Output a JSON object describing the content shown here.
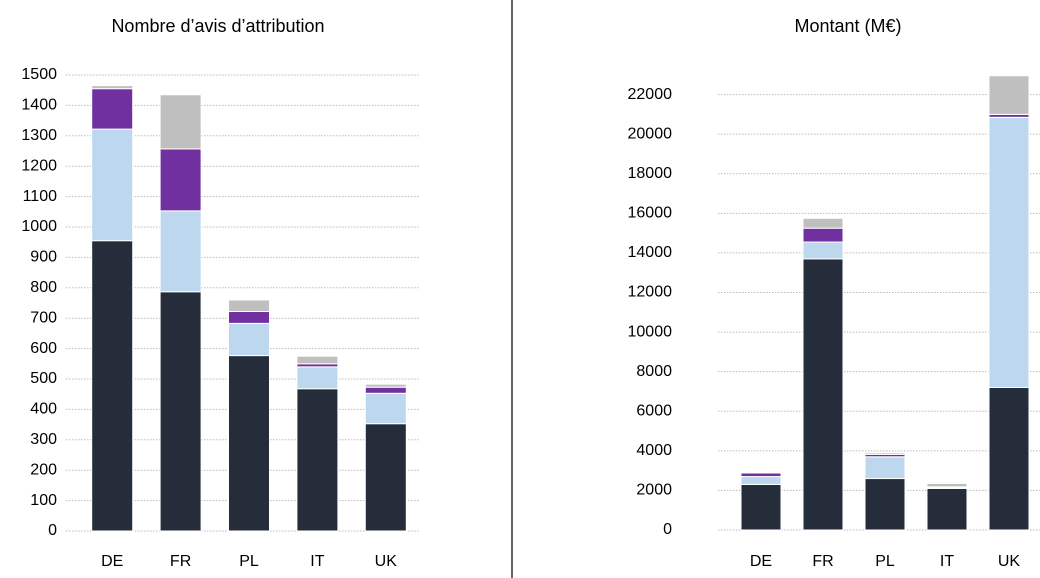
{
  "chart_data": [
    {
      "type": "bar",
      "stacked": true,
      "title": "Nombre d’avis d’attribution",
      "categories": [
        "DE",
        "FR",
        "PL",
        "IT",
        "UK"
      ],
      "series": [
        {
          "color": "#252c3a",
          "values": [
            955,
            787,
            577,
            468,
            353
          ]
        },
        {
          "color": "#bdd7ee",
          "values": [
            367,
            266,
            106,
            72,
            100
          ]
        },
        {
          "color": "#7030a0",
          "values": [
            133,
            204,
            39,
            10,
            20
          ]
        },
        {
          "color": "#bfbfbf",
          "values": [
            10,
            178,
            38,
            25,
            10
          ]
        }
      ],
      "ylim": [
        0,
        1500
      ],
      "yticks": [
        0,
        100,
        200,
        300,
        400,
        500,
        600,
        700,
        800,
        900,
        1000,
        1100,
        1200,
        1300,
        1400,
        1500
      ],
      "grid": true
    },
    {
      "type": "bar",
      "stacked": true,
      "title": "Montant (M€)",
      "categories": [
        "DE",
        "FR",
        "PL",
        "IT",
        "UK"
      ],
      "series": [
        {
          "color": "#252c3a",
          "values": [
            2300,
            13700,
            2600,
            2100,
            7200
          ]
        },
        {
          "color": "#bdd7ee",
          "values": [
            400,
            850,
            1100,
            50,
            13650
          ]
        },
        {
          "color": "#7030a0",
          "values": [
            180,
            700,
            120,
            30,
            150
          ]
        },
        {
          "color": "#bfbfbf",
          "values": [
            30,
            500,
            80,
            170,
            1950
          ]
        }
      ],
      "ylim": [
        0,
        24000
      ],
      "yticks": [
        0,
        2000,
        4000,
        6000,
        8000,
        10000,
        12000,
        14000,
        16000,
        18000,
        20000,
        22000
      ],
      "grid": true
    }
  ]
}
